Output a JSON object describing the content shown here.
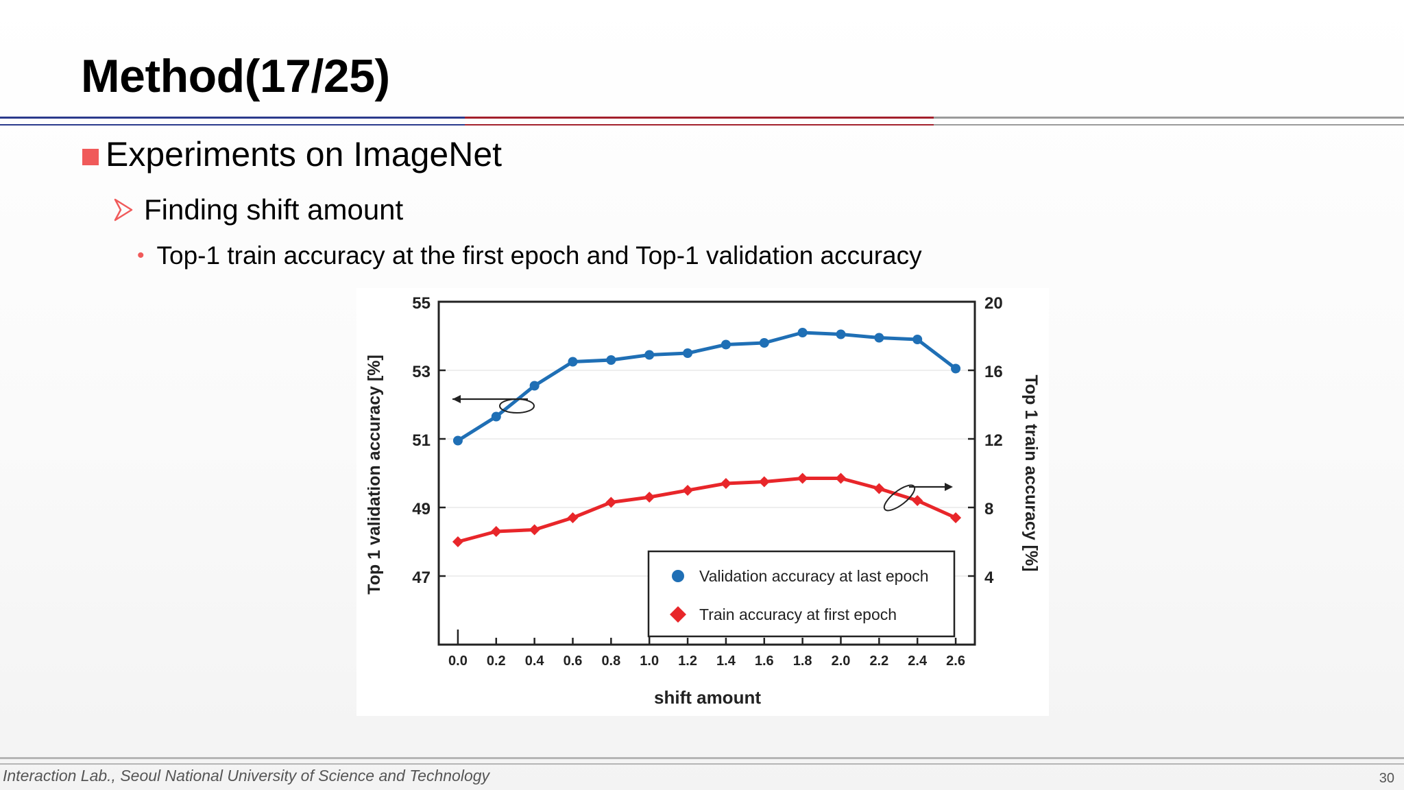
{
  "slide": {
    "title": "Method(17/25)",
    "bullet1": "Experiments on ImageNet",
    "bullet2": "Finding shift amount",
    "bullet3": "Top-1 train accuracy at the first epoch and Top-1 validation accuracy"
  },
  "footer": {
    "text": "Interaction Lab., Seoul National University of Science and Technology",
    "page": "30"
  },
  "colors": {
    "accent_square": "#f05a5a",
    "rule_blue": "#2b3a8c",
    "rule_red": "#a3202c",
    "validation_series": "#1f6fb5",
    "train_series": "#e8262a"
  },
  "chart_data": {
    "type": "line",
    "xlabel": "shift amount",
    "ylabel_left": "Top 1 validation accuracy [%]",
    "ylabel_right": "Top 1 train accuracy [%]",
    "x": [
      0.0,
      0.2,
      0.4,
      0.6,
      0.8,
      1.0,
      1.2,
      1.4,
      1.6,
      1.8,
      2.0,
      2.2,
      2.4,
      2.6
    ],
    "x_tick_labels": [
      "0.0",
      "0.2",
      "0.4",
      "0.6",
      "0.8",
      "1.0",
      "1.2",
      "1.4",
      "1.6",
      "1.8",
      "2.0",
      "2.2",
      "2.4",
      "2.6"
    ],
    "xlim": [
      -0.1,
      2.7
    ],
    "ylim_left": [
      45,
      55
    ],
    "ylim_right": [
      0,
      20
    ],
    "y_ticks_left": [
      "47",
      "49",
      "51",
      "53",
      "55"
    ],
    "y_ticks_right": [
      "4",
      "8",
      "12",
      "16",
      "20"
    ],
    "grid": false,
    "legend_position": "bottom-right",
    "series": [
      {
        "name": "Validation accuracy at last epoch",
        "axis": "left",
        "marker": "circle",
        "color": "#1f6fb5",
        "values": [
          50.95,
          51.65,
          52.55,
          53.25,
          53.3,
          53.45,
          53.5,
          53.75,
          53.8,
          54.1,
          54.05,
          53.95,
          53.9,
          53.05
        ]
      },
      {
        "name": "Train accuracy at first epoch",
        "axis": "right",
        "marker": "diamond",
        "color": "#e8262a",
        "values": [
          6.0,
          6.6,
          6.7,
          7.4,
          8.3,
          8.6,
          9.0,
          9.4,
          9.5,
          9.7,
          9.7,
          9.1,
          8.4,
          7.4
        ]
      }
    ]
  }
}
